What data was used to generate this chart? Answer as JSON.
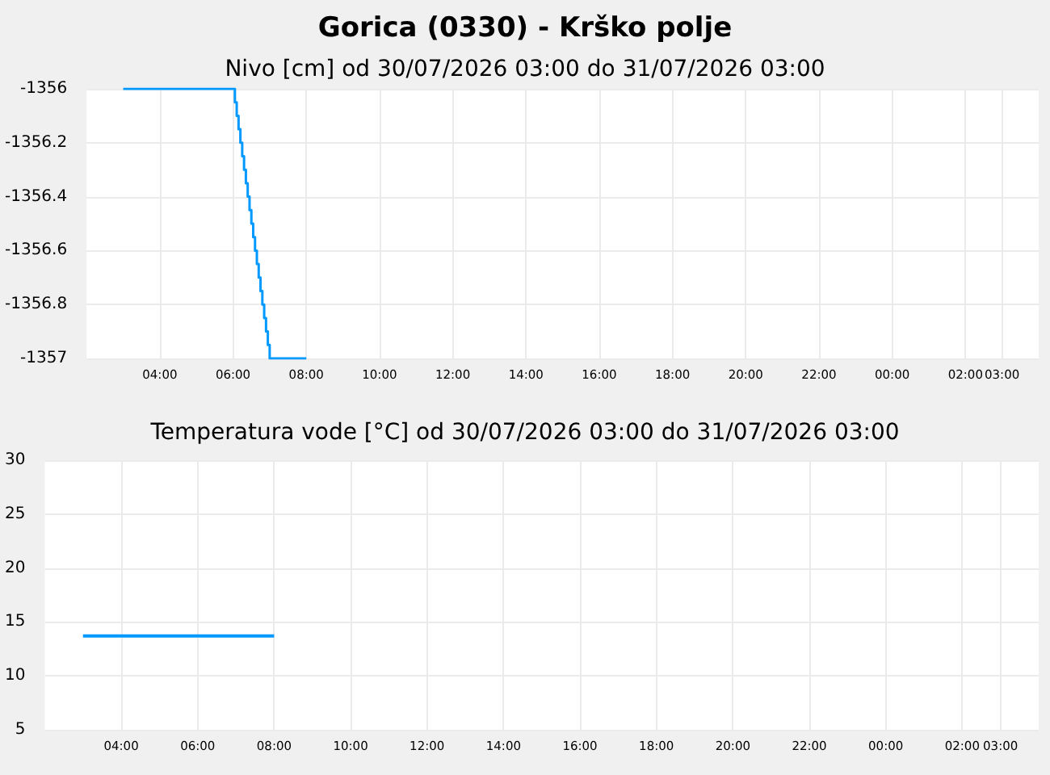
{
  "chart_data": [
    {
      "type": "step",
      "title": "Gorica (0330) - Krško polje",
      "subtitle": "Nivo [cm] od 30/07/2026 03:00 do 31/07/2026 03:00",
      "series": [
        {
          "color": "#0099ff",
          "x": [
            "2026-07-30T03:00",
            "2026-07-30T06:00",
            "2026-07-30T06:03",
            "2026-07-30T06:06",
            "2026-07-30T06:09",
            "2026-07-30T06:12",
            "2026-07-30T06:15",
            "2026-07-30T06:18",
            "2026-07-30T06:21",
            "2026-07-30T06:24",
            "2026-07-30T06:27",
            "2026-07-30T06:30",
            "2026-07-30T06:33",
            "2026-07-30T06:36",
            "2026-07-30T06:39",
            "2026-07-30T06:42",
            "2026-07-30T06:45",
            "2026-07-30T06:48",
            "2026-07-30T06:51",
            "2026-07-30T06:54",
            "2026-07-30T06:57",
            "2026-07-30T07:00",
            "2026-07-30T08:00"
          ],
          "values": [
            -1356,
            -1356,
            -1356.05,
            -1356.1,
            -1356.15,
            -1356.2,
            -1356.25,
            -1356.3,
            -1356.35,
            -1356.4,
            -1356.45,
            -1356.5,
            -1356.55,
            -1356.6,
            -1356.65,
            -1356.7,
            -1356.75,
            -1356.8,
            -1356.85,
            -1356.9,
            -1356.95,
            -1357,
            -1357
          ]
        }
      ],
      "xlim": [
        "2026-07-30T02:00",
        "2026-07-31T04:00"
      ],
      "xticks": [
        {
          "value": "2026-07-30T04:00",
          "label": "04:00"
        },
        {
          "value": "2026-07-30T06:00",
          "label": "06:00"
        },
        {
          "value": "2026-07-30T08:00",
          "label": "08:00"
        },
        {
          "value": "2026-07-30T10:00",
          "label": "10:00"
        },
        {
          "value": "2026-07-30T12:00",
          "label": "12:00"
        },
        {
          "value": "2026-07-30T14:00",
          "label": "14:00"
        },
        {
          "value": "2026-07-30T16:00",
          "label": "16:00"
        },
        {
          "value": "2026-07-30T18:00",
          "label": "18:00"
        },
        {
          "value": "2026-07-30T20:00",
          "label": "20:00"
        },
        {
          "value": "2026-07-30T22:00",
          "label": "22:00"
        },
        {
          "value": "2026-07-31T00:00",
          "label": "00:00"
        },
        {
          "value": "2026-07-31T02:00",
          "label": "02:00"
        },
        {
          "value": "2026-07-31T03:00",
          "label": "03:00"
        }
      ],
      "ylim": [
        -1357,
        -1356
      ],
      "yticks": [
        -1357,
        -1356.8,
        -1356.6,
        -1356.4,
        -1356.2,
        -1356
      ],
      "grid": true
    },
    {
      "type": "line",
      "title": "Temperatura vode [°C] od 30/07/2026 03:00 do 31/07/2026 03:00",
      "series": [
        {
          "color": "#0099ff",
          "x": [
            "2026-07-30T03:00",
            "2026-07-30T04:00",
            "2026-07-30T05:00",
            "2026-07-30T06:00",
            "2026-07-30T07:00",
            "2026-07-30T08:00"
          ],
          "values": [
            13.7,
            13.7,
            13.7,
            13.7,
            13.7,
            13.7
          ]
        }
      ],
      "xlim": [
        "2026-07-30T02:00",
        "2026-07-31T04:00"
      ],
      "xticks": [
        {
          "value": "2026-07-30T04:00",
          "label": "04:00"
        },
        {
          "value": "2026-07-30T06:00",
          "label": "06:00"
        },
        {
          "value": "2026-07-30T08:00",
          "label": "08:00"
        },
        {
          "value": "2026-07-30T10:00",
          "label": "10:00"
        },
        {
          "value": "2026-07-30T12:00",
          "label": "12:00"
        },
        {
          "value": "2026-07-30T14:00",
          "label": "14:00"
        },
        {
          "value": "2026-07-30T16:00",
          "label": "16:00"
        },
        {
          "value": "2026-07-30T18:00",
          "label": "18:00"
        },
        {
          "value": "2026-07-30T20:00",
          "label": "20:00"
        },
        {
          "value": "2026-07-30T22:00",
          "label": "22:00"
        },
        {
          "value": "2026-07-31T00:00",
          "label": "00:00"
        },
        {
          "value": "2026-07-31T02:00",
          "label": "02:00"
        },
        {
          "value": "2026-07-31T03:00",
          "label": "03:00"
        }
      ],
      "ylim": [
        5,
        30
      ],
      "yticks": [
        5,
        10,
        15,
        20,
        25,
        30
      ],
      "grid": true
    }
  ]
}
